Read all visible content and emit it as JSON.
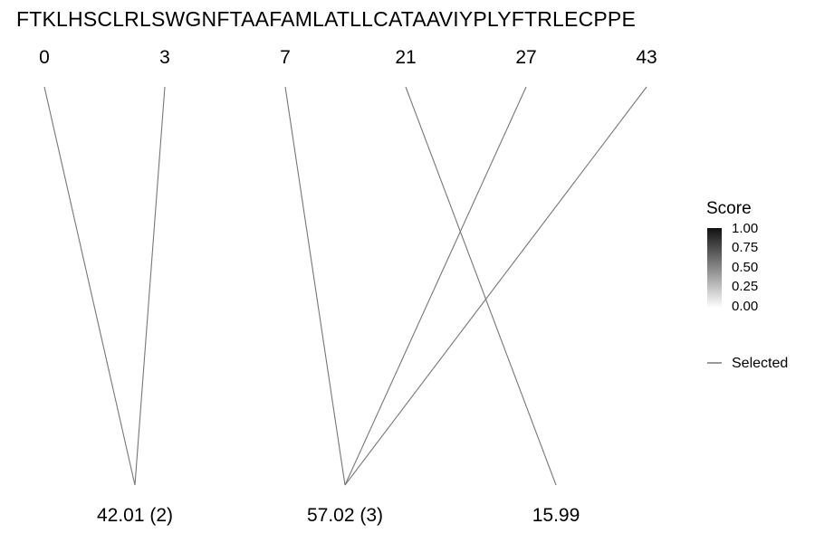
{
  "sequence": "FTKLHSCLRLSWGNFTAAFAMLATLLCATAAVIYPLYFTRLECPPE",
  "top_labels": [
    "0",
    "3",
    "7",
    "21",
    "27",
    "43"
  ],
  "bottom_labels": [
    "42.01 (2)",
    "57.02 (3)",
    "15.99"
  ],
  "links": [
    {
      "from": "0",
      "to": "42.01 (2)"
    },
    {
      "from": "3",
      "to": "42.01 (2)"
    },
    {
      "from": "7",
      "to": "57.02 (3)"
    },
    {
      "from": "27",
      "to": "57.02 (3)"
    },
    {
      "from": "43",
      "to": "57.02 (3)"
    },
    {
      "from": "21",
      "to": "15.99"
    }
  ],
  "legend": {
    "title": "Score",
    "ticks": [
      "1.00",
      "0.75",
      "0.50",
      "0.25",
      "0.00"
    ],
    "gradient": [
      "#111111",
      "#ffffff"
    ],
    "line_label": "Selected"
  },
  "colors": {
    "link_line": "#777777",
    "legend_line": "#333333"
  }
}
